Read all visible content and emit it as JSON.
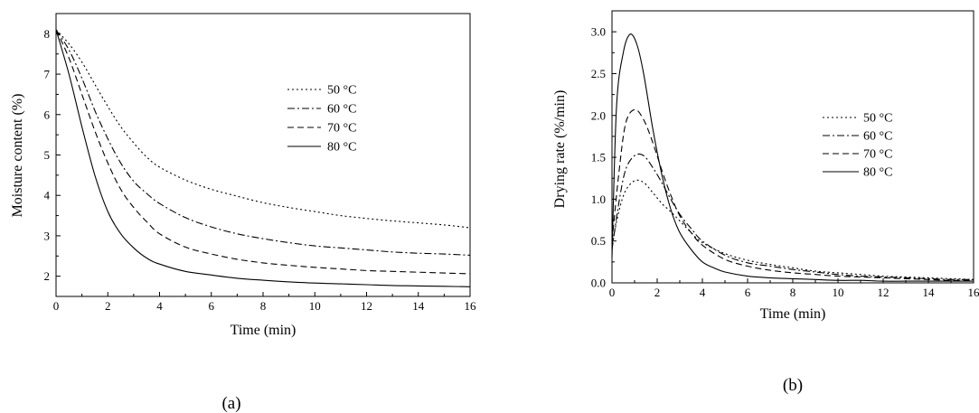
{
  "chart_data": [
    {
      "type": "line",
      "panel_label": "(a)",
      "xlabel": "Time (min)",
      "ylabel": "Moisture content (%)",
      "xlim": [
        0,
        16
      ],
      "ylim": [
        1.5,
        8.5
      ],
      "xticks": [
        "0",
        "2",
        "4",
        "6",
        "8",
        "10",
        "12",
        "14",
        "16"
      ],
      "yticks": [
        "2",
        "3",
        "4",
        "5",
        "6",
        "7",
        "8"
      ],
      "grid": false,
      "legend_position": "top-right",
      "series": [
        {
          "name": "50 °C",
          "dash": "dotted",
          "x": [
            0,
            0.5,
            1,
            1.5,
            2,
            2.5,
            3,
            3.5,
            4,
            5,
            6,
            7,
            8,
            9,
            10,
            11,
            12,
            13,
            14,
            15,
            16
          ],
          "y": [
            8.1,
            7.75,
            7.3,
            6.75,
            6.2,
            5.7,
            5.3,
            4.95,
            4.7,
            4.38,
            4.15,
            3.98,
            3.82,
            3.7,
            3.6,
            3.5,
            3.43,
            3.37,
            3.32,
            3.27,
            3.2
          ]
        },
        {
          "name": "60 °C",
          "dash": "dash-dot",
          "x": [
            0,
            0.5,
            1,
            1.5,
            2,
            2.5,
            3,
            3.5,
            4,
            5,
            6,
            7,
            8,
            9,
            10,
            11,
            12,
            13,
            14,
            15,
            16
          ],
          "y": [
            8.1,
            7.6,
            6.9,
            6.1,
            5.4,
            4.8,
            4.35,
            4.05,
            3.8,
            3.45,
            3.22,
            3.05,
            2.93,
            2.83,
            2.75,
            2.7,
            2.65,
            2.6,
            2.57,
            2.55,
            2.52
          ]
        },
        {
          "name": "70 °C",
          "dash": "dashed",
          "x": [
            0,
            0.5,
            1,
            1.5,
            2,
            2.5,
            3,
            3.5,
            4,
            5,
            6,
            7,
            8,
            9,
            10,
            11,
            12,
            13,
            14,
            15,
            16
          ],
          "y": [
            8.1,
            7.4,
            6.5,
            5.6,
            4.8,
            4.15,
            3.7,
            3.35,
            3.05,
            2.72,
            2.55,
            2.42,
            2.33,
            2.27,
            2.22,
            2.18,
            2.14,
            2.12,
            2.1,
            2.08,
            2.06
          ]
        },
        {
          "name": "80 °C",
          "dash": "solid",
          "x": [
            0,
            0.5,
            1,
            1.5,
            2,
            2.5,
            3,
            3.5,
            4,
            5,
            6,
            7,
            8,
            9,
            10,
            11,
            12,
            13,
            14,
            15,
            16
          ],
          "y": [
            8.1,
            7.0,
            5.7,
            4.5,
            3.6,
            3.05,
            2.7,
            2.45,
            2.3,
            2.12,
            2.03,
            1.95,
            1.9,
            1.86,
            1.83,
            1.81,
            1.79,
            1.77,
            1.76,
            1.75,
            1.74
          ]
        }
      ]
    },
    {
      "type": "line",
      "panel_label": "(b)",
      "xlabel": "Time (min)",
      "ylabel": "Drying rate (%/min)",
      "xlim": [
        0,
        16
      ],
      "ylim": [
        0,
        3.25
      ],
      "xticks": [
        "0",
        "2",
        "4",
        "6",
        "8",
        "10",
        "12",
        "14",
        "16"
      ],
      "yticks": [
        "0.0",
        "0.5",
        "1.0",
        "1.5",
        "2.0",
        "2.5",
        "3.0"
      ],
      "grid": false,
      "legend_position": "top-right",
      "series": [
        {
          "name": "50 °C",
          "dash": "dotted",
          "x": [
            0,
            0.3,
            0.6,
            1,
            1.4,
            1.8,
            2.2,
            2.6,
            3,
            3.5,
            4,
            5,
            6,
            7,
            8,
            9,
            10,
            11,
            12,
            13,
            14,
            15,
            16
          ],
          "y": [
            0.45,
            0.85,
            1.1,
            1.22,
            1.2,
            1.08,
            0.95,
            0.85,
            0.74,
            0.6,
            0.48,
            0.35,
            0.27,
            0.22,
            0.18,
            0.14,
            0.12,
            0.1,
            0.08,
            0.07,
            0.06,
            0.05,
            0.04
          ]
        },
        {
          "name": "60 °C",
          "dash": "dash-dot",
          "x": [
            0,
            0.3,
            0.6,
            1,
            1.4,
            1.8,
            2.2,
            2.6,
            3,
            3.5,
            4,
            5,
            6,
            7,
            8,
            9,
            10,
            11,
            12,
            13,
            14,
            15,
            16
          ],
          "y": [
            0.4,
            0.95,
            1.35,
            1.52,
            1.52,
            1.38,
            1.2,
            1.0,
            0.82,
            0.65,
            0.5,
            0.33,
            0.24,
            0.2,
            0.16,
            0.13,
            0.1,
            0.08,
            0.07,
            0.06,
            0.05,
            0.04,
            0.04
          ]
        },
        {
          "name": "70 °C",
          "dash": "dashed",
          "x": [
            0,
            0.3,
            0.6,
            1,
            1.4,
            1.8,
            2.2,
            2.6,
            3,
            3.5,
            4,
            5,
            6,
            7,
            8,
            9,
            10,
            11,
            12,
            13,
            14,
            15,
            16
          ],
          "y": [
            0.5,
            1.3,
            1.9,
            2.07,
            1.95,
            1.68,
            1.35,
            1.05,
            0.8,
            0.6,
            0.45,
            0.28,
            0.2,
            0.15,
            0.12,
            0.1,
            0.08,
            0.07,
            0.06,
            0.05,
            0.04,
            0.03,
            0.03
          ]
        },
        {
          "name": "80 °C",
          "dash": "solid",
          "x": [
            0,
            0.2,
            0.5,
            0.8,
            1.1,
            1.4,
            1.8,
            2.2,
            2.6,
            3,
            3.5,
            4,
            4.5,
            5,
            6,
            7,
            8,
            9,
            10,
            11,
            12,
            13,
            14,
            15,
            16
          ],
          "y": [
            0.3,
            2.1,
            2.75,
            2.97,
            2.85,
            2.5,
            1.85,
            1.3,
            0.88,
            0.6,
            0.4,
            0.25,
            0.18,
            0.13,
            0.08,
            0.06,
            0.05,
            0.04,
            0.03,
            0.03,
            0.02,
            0.02,
            0.02,
            0.02,
            0.02
          ]
        }
      ]
    }
  ]
}
